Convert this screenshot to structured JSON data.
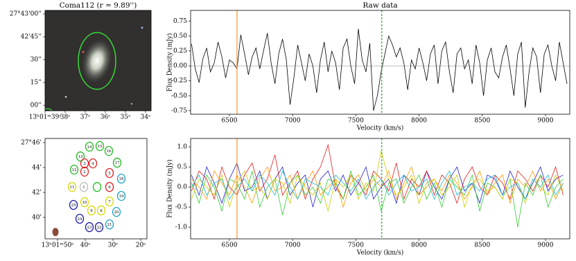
{
  "chart_data": [
    {
      "type": "image",
      "title": "Coma112 (r = 9.89'')",
      "xlim": [
        39,
        33.72
      ],
      "ylim": [
        -3.6,
        62.3
      ],
      "xticks": [
        {
          "value": 39,
          "label": "13ʰ01ᵐ39ˢ"
        },
        {
          "value": 38,
          "label": "38ˢ"
        },
        {
          "value": 37,
          "label": "37ˢ"
        },
        {
          "value": 36,
          "label": "36ˢ"
        },
        {
          "value": 35,
          "label": "35ˢ"
        },
        {
          "value": 34,
          "label": "34ˢ"
        }
      ],
      "yticks": [
        {
          "value": 60,
          "label": "27°43'00''"
        },
        {
          "value": 45,
          "label": "42'45''"
        },
        {
          "value": 30,
          "label": "30''"
        },
        {
          "value": 15,
          "label": "15''"
        },
        {
          "value": 0,
          "label": "00''"
        }
      ]
    },
    {
      "type": "scatter",
      "xlim": [
        54.5,
        17.75
      ],
      "ylim": [
        38.28,
        46.33
      ],
      "xticks": [
        {
          "value": 50,
          "label": "13ʰ01ᵐ50ˢ"
        },
        {
          "value": 40,
          "label": "40ˢ"
        },
        {
          "value": 30,
          "label": "30ˢ"
        },
        {
          "value": 20,
          "label": "20ˢ"
        }
      ],
      "yticks": [
        {
          "value": 46,
          "label": "27°46'"
        },
        {
          "value": 44,
          "label": "44'"
        },
        {
          "value": 42,
          "label": "42'"
        },
        {
          "value": 40,
          "label": "40'"
        }
      ],
      "labels": [
        "14",
        "15",
        "16",
        "13",
        "17",
        "3",
        "4",
        "12",
        "2",
        "5",
        "18",
        "11",
        "1",
        null,
        "6",
        "19",
        "10",
        "7",
        "25",
        "9",
        "8",
        "20",
        "24",
        "21",
        "23",
        "22"
      ],
      "x": [
        38.5,
        34.75,
        31.5,
        41.75,
        28.5,
        40.25,
        37.25,
        44,
        40.25,
        31.25,
        27,
        44.75,
        40.5,
        35.75,
        31.25,
        27,
        40.25,
        31.25,
        44.25,
        37.75,
        34.25,
        28.75,
        42,
        31.25,
        38.5,
        35
      ],
      "y": [
        45.67,
        45.72,
        45.33,
        44.89,
        44.39,
        44.33,
        44.33,
        43.83,
        43.67,
        43.56,
        43.11,
        42.44,
        42.44,
        42.44,
        42.44,
        41.72,
        41.22,
        41.28,
        41.0,
        40.56,
        40.56,
        40.44,
        39.89,
        39.44,
        39.22,
        39.22
      ],
      "colors": [
        "#22bb22",
        "#22bb22",
        "#22bb22",
        "#22bb22",
        "#22bb22",
        "#dd2222",
        "#dd2222",
        "#22bb22",
        "#dd2222",
        "#dd2222",
        "#1aa3c7",
        "#d8d800",
        "#bbbbbb",
        "#22bb22",
        "#dd2222",
        "#1aa3c7",
        "#d8d800",
        "#d8d800",
        "#1a1aa6",
        "#d8d800",
        "#d8d800",
        "#1aa3c7",
        "#1a1aa6",
        "#1aa3c7",
        "#1a1aa6",
        "#1a1aa6"
      ],
      "beam": {
        "x": 50.75,
        "y": 38.83,
        "color": "#8b4a3a"
      }
    },
    {
      "type": "line",
      "title": "Raw data",
      "xlabel": "Velocity (km/s)",
      "ylabel": "Flux Density (mJy)",
      "xlim": [
        6193,
        9192
      ],
      "ylim": [
        -0.81,
        0.93
      ],
      "zero_line": true,
      "xticks": [
        6500,
        7000,
        7500,
        8000,
        8500,
        9000
      ],
      "yticks": [
        0.75,
        {
          "value": 0.5,
          "label": "0.50"
        },
        0.25,
        {
          "value": 0,
          "label": "0.00"
        },
        -0.25,
        {
          "value": -0.5,
          "label": "-0.50"
        },
        -0.75
      ],
      "vlines": [
        {
          "value": 6560,
          "color": "#ff8c1a",
          "dash": false
        },
        {
          "value": 7705,
          "color": "#1f9a1f",
          "dash": true
        }
      ],
      "x": [
        6200,
        6230,
        6260,
        6290,
        6320,
        6350,
        6380,
        6410,
        6440,
        6470,
        6500,
        6530,
        6560,
        6590,
        6620,
        6650,
        6680,
        6710,
        6740,
        6770,
        6800,
        6830,
        6860,
        6890,
        6920,
        6950,
        6980,
        7010,
        7040,
        7070,
        7100,
        7130,
        7160,
        7190,
        7220,
        7250,
        7280,
        7310,
        7340,
        7370,
        7400,
        7430,
        7460,
        7490,
        7520,
        7550,
        7580,
        7610,
        7640,
        7670,
        7700,
        7730,
        7760,
        7790,
        7820,
        7850,
        7880,
        7910,
        7940,
        7970,
        8000,
        8030,
        8060,
        8090,
        8120,
        8150,
        8180,
        8210,
        8240,
        8270,
        8300,
        8330,
        8360,
        8390,
        8420,
        8450,
        8480,
        8510,
        8540,
        8570,
        8600,
        8630,
        8660,
        8690,
        8720,
        8750,
        8780,
        8810,
        8840,
        8870,
        8900,
        8930,
        8960,
        8990,
        9020,
        9050,
        9080,
        9110,
        9140,
        9170
      ],
      "series": [
        {
          "color": "#000000",
          "values": [
            0.37,
            -0.05,
            -0.28,
            0.12,
            0.3,
            -0.1,
            0.05,
            0.4,
            0.15,
            -0.2,
            0.1,
            0.05,
            -0.05,
            0.52,
            0.2,
            -0.15,
            0.15,
            0.3,
            -0.05,
            0.25,
            0.55,
            0.05,
            -0.3,
            0.2,
            0.45,
            0.1,
            -0.65,
            -0.2,
            0.35,
            0.05,
            -0.25,
            0.2,
            0,
            -0.45,
            0.1,
            0.4,
            -0.1,
            0.25,
            0.05,
            -0.4,
            0.3,
            0.45,
            0,
            -0.3,
            0.62,
            0.1,
            -0.1,
            0.38,
            -0.75,
            -0.5,
            -0.1,
            0.2,
            0.5,
            0.35,
            0.15,
            0.3,
            0.05,
            -0.4,
            0.1,
            -0.05,
            0.3,
            0.05,
            -0.25,
            0.2,
            0.35,
            -0.3,
            0.25,
            0.4,
            -0.1,
            -0.45,
            0.2,
            0.3,
            -0.05,
            0.1,
            -0.3,
            0.35,
            0.05,
            -0.5,
            0.1,
            0.3,
            -0.1,
            -0.2,
            0.15,
            0.35,
            -0.05,
            -0.5,
            0.2,
            0.4,
            -0.7,
            -0.1,
            0.3,
            0.15,
            -0.45,
            0.2,
            0.35,
            0,
            -0.25,
            0.4,
            0.05,
            -0.3
          ]
        }
      ]
    },
    {
      "type": "line",
      "xlabel": "Velocity (km/s)",
      "ylabel": "Flux Density (mJy)",
      "xlim": [
        6193,
        9192
      ],
      "ylim": [
        -1.29,
        1.21
      ],
      "xticks": [
        6500,
        7000,
        7500,
        8000,
        8500,
        9000
      ],
      "yticks": [
        {
          "value": 1,
          "label": "1.0"
        },
        0.5,
        {
          "value": 0,
          "label": "0.0"
        },
        -0.5,
        {
          "value": -1,
          "label": "-1.0"
        }
      ],
      "vlines": [
        {
          "value": 6560,
          "color": "#ff8c1a",
          "dash": false
        },
        {
          "value": 7705,
          "color": "#1f9a1f",
          "dash": true
        }
      ],
      "x": [
        6200,
        6260,
        6320,
        6380,
        6440,
        6500,
        6560,
        6620,
        6680,
        6740,
        6800,
        6860,
        6920,
        6980,
        7040,
        7100,
        7160,
        7220,
        7280,
        7340,
        7400,
        7460,
        7520,
        7580,
        7640,
        7700,
        7760,
        7820,
        7880,
        7940,
        8000,
        8060,
        8120,
        8180,
        8240,
        8300,
        8360,
        8420,
        8480,
        8540,
        8600,
        8660,
        8720,
        8780,
        8840,
        8900,
        8960,
        9020,
        9080,
        9140
      ],
      "series": [
        {
          "color": "#1f1fcc",
          "values": [
            0.3,
            -0.2,
            0.5,
            0.1,
            -0.4,
            0.2,
            0.6,
            -0.1,
            0,
            0.4,
            -0.3,
            0.2,
            0.5,
            -0.2,
            0.1,
            0.3,
            -0.5,
            0.2,
            0.4,
            -0.1,
            0.3,
            -0.2,
            0.1,
            0.5,
            -0.3,
            0,
            0.2,
            -0.4,
            0.3,
            0.1,
            -0.2,
            0.4,
            0,
            -0.3,
            0.2,
            0.5,
            -0.1,
            0.1,
            -0.4,
            0.3,
            0.2,
            -0.2,
            0.4,
            0,
            -0.3,
            0.1,
            0.5,
            -0.1,
            0.2,
            0.3
          ]
        },
        {
          "color": "#e31a1c",
          "values": [
            -0.1,
            0.4,
            0.2,
            -0.3,
            0.5,
            0,
            -0.2,
            0.3,
            0.6,
            -0.1,
            0.2,
            0.8,
            -0.2,
            0.1,
            0.4,
            -0.3,
            0.2,
            0.5,
            1.05,
            0,
            -0.3,
            0.3,
            0.1,
            -0.2,
            0.4,
            0.2,
            -0.1,
            0.6,
            -0.3,
            0.2,
            0,
            0.4,
            -0.2,
            0.3,
            0.1,
            -0.4,
            0.2,
            0.5,
            0,
            -0.2,
            0.3,
            0.1,
            -0.3,
            0.4,
            0.2,
            -0.1,
            0.3,
            0,
            0.5,
            -0.2
          ]
        },
        {
          "color": "#33cc33",
          "values": [
            0.1,
            -0.4,
            0.3,
            0,
            -0.6,
            0.2,
            0.1,
            -0.3,
            0.4,
            -0.5,
            0,
            0.2,
            -0.7,
            0.1,
            0.3,
            -0.2,
            0,
            -0.4,
            0.2,
            0.1,
            -0.3,
            0.4,
            -0.2,
            0,
            0.3,
            -0.6,
            0.1,
            0.2,
            -0.4,
            0,
            0.3,
            -0.3,
            0.1,
            -0.5,
            0.2,
            0,
            -0.2,
            0.3,
            -0.6,
            0.1,
            0,
            -0.3,
            0.2,
            -1.0,
            0.1,
            -0.2,
            0.3,
            -0.5,
            0,
            0.2
          ]
        },
        {
          "color": "#ff9900",
          "values": [
            0.2,
            0,
            -0.3,
            0.4,
            0.1,
            -0.2,
            0.3,
            0,
            -0.4,
            0.2,
            0.5,
            -0.1,
            0,
            0.3,
            -0.3,
            0.1,
            0.4,
            -0.2,
            0,
            0.2,
            -0.5,
            0.1,
            0.3,
            -0.1,
            0.2,
            0,
            0.4,
            -0.3,
            0.1,
            0.5,
            -0.2,
            0,
            0.2,
            -0.1,
            0.3,
            0.1,
            -0.3,
            0,
            0.4,
            -0.2,
            0.1,
            0.3,
            -0.4,
            0.2,
            0,
            0.4,
            -0.1,
            0.2,
            -0.3,
            0.1
          ]
        },
        {
          "color": "#cccc00",
          "values": [
            -0.3,
            0.2,
            0,
            -0.2,
            0.3,
            -0.5,
            0.1,
            0.4,
            -0.1,
            0,
            -0.3,
            0.2,
            0.1,
            -0.4,
            0.3,
            0,
            -0.2,
            0.1,
            -0.6,
            0.2,
            0,
            0.3,
            -0.3,
            0.1,
            -0.1,
            0.9,
            0.2,
            -0.2,
            0,
            0.3,
            -0.4,
            0.1,
            0.2,
            -0.2,
            0,
            0.3,
            -0.5,
            0.1,
            0.2,
            -0.1,
            0,
            -0.3,
            0.2,
            0.1,
            -0.4,
            0.2,
            0,
            -0.2,
            0.3,
            -0.1
          ]
        },
        {
          "color": "#17becf",
          "values": [
            0,
            0.3,
            -0.2,
            0.1,
            0.2,
            -0.3,
            0,
            0.2,
            -0.1,
            0.3,
            0.1,
            -0.2,
            0.4,
            0,
            -0.3,
            0.2,
            0.1,
            0,
            -0.2,
            0.3,
            0.1,
            -0.1,
            0.2,
            -0.3,
            0,
            0.2,
            -0.2,
            0.1,
            0.3,
            -0.1,
            0,
            0.2,
            -0.3,
            0.1,
            0.4,
            -0.2,
            0,
            0.1,
            -0.1,
            0.2,
            0.3,
            -0.2,
            0,
            0.1,
            -0.3,
            0.2,
            0,
            0.3,
            -0.2,
            0.1
          ]
        }
      ]
    }
  ]
}
